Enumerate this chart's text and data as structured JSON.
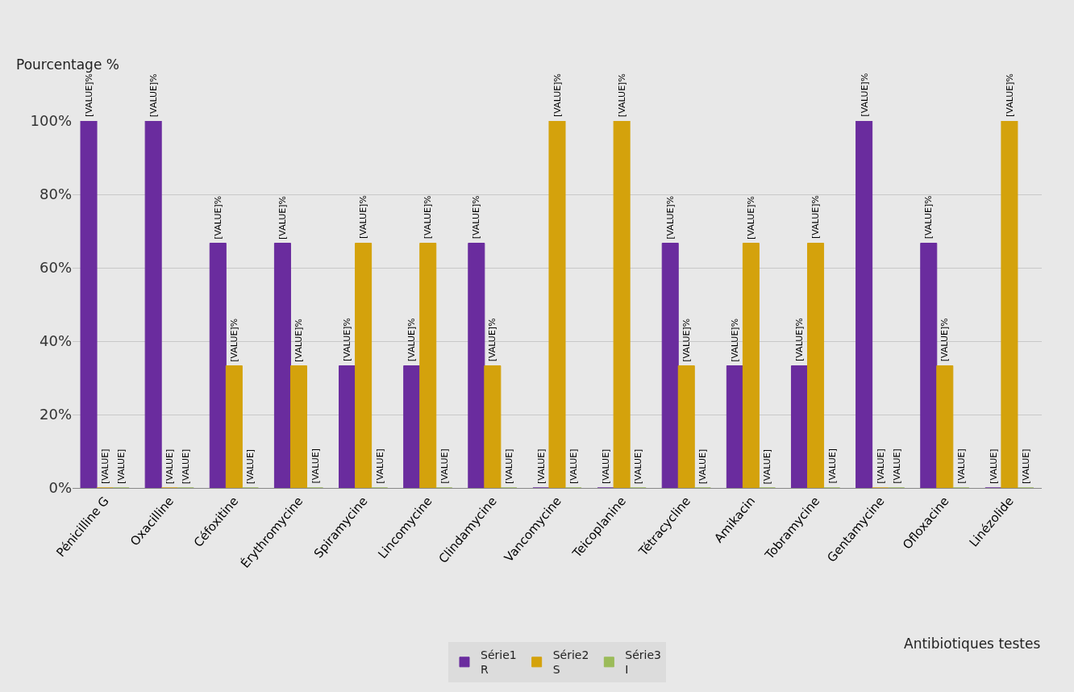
{
  "chart_data": {
    "type": "bar",
    "ylabel": "Pourcentage %",
    "xlabel": "Antibiotiques testes",
    "categories": [
      "Pénicilline G",
      "Oxacilline",
      "Céfoxitine",
      "Érythromycine",
      "Spiramycine",
      "Lincomycine",
      "Clindamycine",
      "Vancomycine",
      "Teicoplanine",
      "Tétracycline",
      "Amikacin",
      "Tobramycine",
      "Gentamycine",
      "Ofloxacine",
      "Linézolide"
    ],
    "series": [
      {
        "name": "Série1\nR",
        "color": "#6a2c9e",
        "values": [
          100,
          100,
          66.7,
          66.7,
          33.3,
          33.3,
          66.7,
          0,
          0,
          66.7,
          33.3,
          33.3,
          100,
          66.7,
          0
        ],
        "value_labels": [
          "[VALUE]%",
          "[VALUE]%",
          "[VALUE]%",
          "[VALUE]%",
          "[VALUE]%",
          "[VALUE]%",
          "[VALUE]%",
          "[VALUE]",
          "[VALUE]",
          "[VALUE]%",
          "[VALUE]%",
          "[VALUE]%",
          "[VALUE]%",
          "[VALUE]%",
          "[VALUE]"
        ]
      },
      {
        "name": "Série2\nS",
        "color": "#d4a20c",
        "values": [
          0,
          0,
          33.3,
          33.3,
          66.7,
          66.7,
          33.3,
          100,
          100,
          33.3,
          66.7,
          66.7,
          0,
          33.3,
          100
        ],
        "value_labels": [
          "[VALUE]",
          "[VALUE]",
          "[VALUE]%",
          "[VALUE]%",
          "[VALUE]%",
          "[VALUE]%",
          "[VALUE]%",
          "[VALUE]%",
          "[VALUE]%",
          "[VALUE]%",
          "[VALUE]%",
          "[VALUE]%",
          "[VALUE]",
          "[VALUE]%",
          "[VALUE]%"
        ]
      },
      {
        "name": "Série3\nI",
        "color": "#9bbb59",
        "values": [
          0,
          0,
          0,
          0,
          0,
          0,
          0,
          0,
          0,
          0,
          0,
          0,
          0,
          0,
          0
        ],
        "value_labels": [
          "[VALUE]",
          "[VALUE]",
          "[VALUE]",
          "[VALUE]",
          "[VALUE]",
          "[VALUE]",
          "[VALUE]",
          "[VALUE]",
          "[VALUE]",
          "[VALUE]",
          "[VALUE]",
          "[VALUE]",
          "[VALUE]",
          "[VALUE]",
          "[VALUE]"
        ]
      }
    ],
    "ylim": [
      0,
      100
    ],
    "yticks": [
      {
        "value": 0,
        "label": "0%"
      },
      {
        "value": 20,
        "label": "20%"
      },
      {
        "value": 40,
        "label": "40%"
      },
      {
        "value": 60,
        "label": "60%"
      },
      {
        "value": 80,
        "label": "80%"
      },
      {
        "value": 100,
        "label": "100%"
      }
    ],
    "grid": "y",
    "legend": "bottom"
  }
}
